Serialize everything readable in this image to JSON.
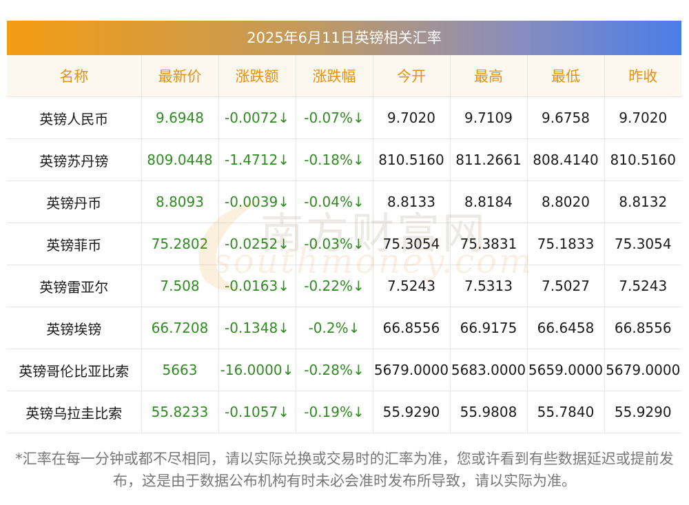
{
  "title": "2025年6月11日英镑相关汇率",
  "columns": [
    "名称",
    "最新价",
    "涨跌额",
    "涨跌幅",
    "今开",
    "最高",
    "最低",
    "昨收"
  ],
  "rows": [
    {
      "name": "英镑人民币",
      "latest": "9.6948",
      "change": "-0.0072↓",
      "change_pct": "-0.07%↓",
      "open": "9.7020",
      "high": "9.7109",
      "low": "9.6758",
      "prev_close": "9.7020"
    },
    {
      "name": "英镑苏丹镑",
      "latest": "809.0448",
      "change": "-1.4712↓",
      "change_pct": "-0.18%↓",
      "open": "810.5160",
      "high": "811.2661",
      "low": "808.4140",
      "prev_close": "810.5160"
    },
    {
      "name": "英镑丹币",
      "latest": "8.8093",
      "change": "-0.0039↓",
      "change_pct": "-0.04%↓",
      "open": "8.8133",
      "high": "8.8184",
      "low": "8.8020",
      "prev_close": "8.8132"
    },
    {
      "name": "英镑菲币",
      "latest": "75.2802",
      "change": "-0.0252↓",
      "change_pct": "-0.03%↓",
      "open": "75.3054",
      "high": "75.3831",
      "low": "75.1833",
      "prev_close": "75.3054"
    },
    {
      "name": "英镑雷亚尔",
      "latest": "7.508",
      "change": "-0.0163↓",
      "change_pct": "-0.22%↓",
      "open": "7.5243",
      "high": "7.5313",
      "low": "7.5027",
      "prev_close": "7.5243"
    },
    {
      "name": "英镑埃镑",
      "latest": "66.7208",
      "change": "-0.1348↓",
      "change_pct": "-0.2%↓",
      "open": "66.8556",
      "high": "66.9175",
      "low": "66.6458",
      "prev_close": "66.8556"
    },
    {
      "name": "英镑哥伦比亚比索",
      "latest": "5663",
      "change": "-16.0000↓",
      "change_pct": "-0.28%↓",
      "open": "5679.0000",
      "high": "5683.0000",
      "low": "5659.0000",
      "prev_close": "5679.0000"
    },
    {
      "name": "英镑乌拉圭比索",
      "latest": "55.8233",
      "change": "-0.1057↓",
      "change_pct": "-0.19%↓",
      "open": "55.9290",
      "high": "55.9808",
      "low": "55.7840",
      "prev_close": "55.9290"
    }
  ],
  "watermark": {
    "cn": "南方财富网",
    "en": "southmoney.com"
  },
  "footer_note": "*汇率在每一分钟或都不尽相同，请以实际兑换或交易时的汇率为准，您或许看到有些数据延迟或提前发布，这是由于数据公布机构有时未必会准时发布所导致，请以实际为准。",
  "colors": {
    "header_text": "#e8900c",
    "header_bg": "#fdf8ef",
    "positive_green": "#2e8b1f",
    "title_gradient_start": "#f39c12",
    "title_gradient_end": "#4a7de8"
  }
}
